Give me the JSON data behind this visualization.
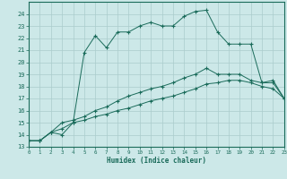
{
  "background_color": "#cce8e8",
  "grid_color": "#aacccc",
  "line_color": "#1a6b5a",
  "xlabel": "Humidex (Indice chaleur)",
  "xlim": [
    0,
    23
  ],
  "ylim": [
    13,
    25
  ],
  "xticks": [
    0,
    1,
    2,
    3,
    4,
    5,
    6,
    7,
    8,
    9,
    10,
    11,
    12,
    13,
    14,
    15,
    16,
    17,
    18,
    19,
    20,
    21,
    22,
    23
  ],
  "yticks": [
    13,
    14,
    15,
    16,
    17,
    18,
    19,
    20,
    21,
    22,
    23,
    24
  ],
  "series": [
    {
      "x": [
        0,
        1,
        2,
        3,
        4,
        5,
        6,
        7,
        8,
        9,
        10,
        11,
        12,
        13,
        14,
        15,
        16,
        17,
        18,
        19,
        20,
        21,
        22,
        23
      ],
      "y": [
        13.5,
        13.5,
        14.2,
        14.0,
        15.0,
        20.8,
        22.2,
        21.2,
        22.5,
        22.5,
        23.0,
        23.3,
        23.0,
        23.0,
        23.8,
        24.2,
        24.3,
        22.5,
        21.5,
        21.5,
        21.5,
        18.3,
        18.5,
        17.0
      ]
    },
    {
      "x": [
        0,
        1,
        2,
        3,
        4,
        5,
        6,
        7,
        8,
        9,
        10,
        11,
        12,
        13,
        14,
        15,
        16,
        17,
        18,
        19,
        20,
        21,
        22,
        23
      ],
      "y": [
        13.5,
        13.5,
        14.2,
        15.0,
        15.2,
        15.5,
        16.0,
        16.3,
        16.8,
        17.2,
        17.5,
        17.8,
        18.0,
        18.3,
        18.7,
        19.0,
        19.5,
        19.0,
        19.0,
        19.0,
        18.5,
        18.3,
        18.3,
        17.0
      ]
    },
    {
      "x": [
        0,
        1,
        2,
        3,
        4,
        5,
        6,
        7,
        8,
        9,
        10,
        11,
        12,
        13,
        14,
        15,
        16,
        17,
        18,
        19,
        20,
        21,
        22,
        23
      ],
      "y": [
        13.5,
        13.5,
        14.2,
        14.5,
        15.0,
        15.2,
        15.5,
        15.7,
        16.0,
        16.2,
        16.5,
        16.8,
        17.0,
        17.2,
        17.5,
        17.8,
        18.2,
        18.3,
        18.5,
        18.5,
        18.3,
        18.0,
        17.8,
        17.0
      ]
    }
  ]
}
